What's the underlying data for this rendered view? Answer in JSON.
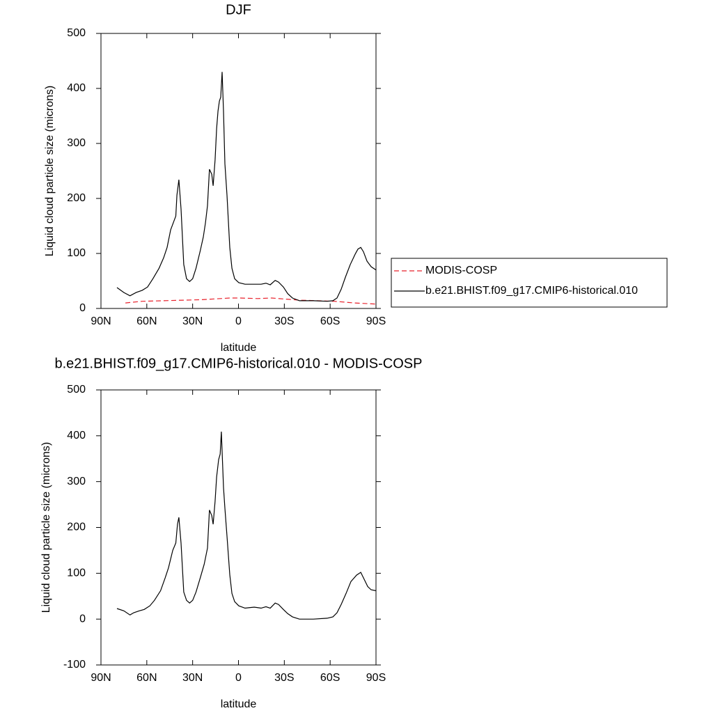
{
  "chart_data": [
    {
      "type": "line",
      "title": "DJF",
      "y_label": "Liquid cloud particle size (microns)",
      "x_label": "latitude",
      "xlim": [
        90,
        -90
      ],
      "xticks": [
        {
          "value": 90,
          "label": "90N"
        },
        {
          "value": 60,
          "label": "60N"
        },
        {
          "value": 30,
          "label": "30N"
        },
        0,
        {
          "value": -30,
          "label": "30S"
        },
        {
          "value": -60,
          "label": "60S"
        },
        {
          "value": -90,
          "label": "90S"
        }
      ],
      "ylim": [
        0,
        500
      ],
      "yticks": [
        0,
        100,
        200,
        300,
        400,
        500
      ],
      "legend": "right",
      "series": [
        {
          "name": "MODIS-COSP",
          "color": "#e8202a",
          "dash": true,
          "x": [
            74,
            63,
            24,
            5.7,
            -1,
            -12.6,
            -21.7,
            -40,
            -62.7,
            -76,
            -90
          ],
          "values": [
            10,
            13,
            16,
            19,
            19,
            18,
            19,
            15,
            13,
            10,
            8
          ]
        },
        {
          "name": "b.e21.BHIST.f09_g17.CMIP6-historical.010",
          "color": "#000000",
          "dash": false,
          "x": [
            79.5,
            75,
            71,
            67,
            63,
            59.5,
            56,
            52,
            49,
            46.7,
            44.4,
            41,
            40.3,
            39,
            37.6,
            35.8,
            34,
            32,
            30,
            27.8,
            25,
            23,
            21.6,
            20.3,
            19,
            17.5,
            16.6,
            15.3,
            14.3,
            13.4,
            12.5,
            11.6,
            10.7,
            9.8,
            8.9,
            7.5,
            5.7,
            4.3,
            2.5,
            -0.2,
            -4.3,
            -10.3,
            -14.8,
            -18,
            -20.8,
            -24,
            -26.2,
            -29.4,
            -32.2,
            -35.3,
            -39.9,
            -49,
            -58,
            -61.8,
            -64.5,
            -67.2,
            -70,
            -73.2,
            -76.4,
            -78.2,
            -80,
            -81.8,
            -84.1,
            -86.8,
            -90
          ],
          "values": [
            38,
            29,
            23,
            29,
            33,
            39,
            54,
            73,
            92,
            111,
            143,
            168,
            206,
            234,
            181,
            80,
            54,
            49,
            54,
            73,
            105,
            130,
            156,
            187,
            253,
            244,
            223,
            270,
            327,
            359,
            377,
            384,
            430,
            358,
            263,
            206,
            111,
            73,
            54,
            47,
            44,
            44,
            44,
            46,
            43,
            51,
            48,
            39,
            27,
            19,
            14,
            14,
            13,
            14,
            19,
            35,
            57,
            80,
            99,
            108,
            111,
            103,
            86,
            76,
            70
          ]
        }
      ]
    },
    {
      "type": "line",
      "title": "b.e21.BHIST.f09_g17.CMIP6-historical.010 - MODIS-COSP",
      "y_label": "Liquid cloud particle size (microns)",
      "x_label": "latitude",
      "xlim": [
        90,
        -90
      ],
      "xticks": [
        {
          "value": 90,
          "label": "90N"
        },
        {
          "value": 60,
          "label": "60N"
        },
        {
          "value": 30,
          "label": "30N"
        },
        0,
        {
          "value": -30,
          "label": "30S"
        },
        {
          "value": -60,
          "label": "60S"
        },
        {
          "value": -90,
          "label": "90S"
        }
      ],
      "ylim": [
        -100,
        500
      ],
      "yticks": [
        -100,
        0,
        100,
        200,
        300,
        400,
        500
      ],
      "legend": false,
      "series": [
        {
          "color": "#000000",
          "dash": false,
          "x": [
            79.5,
            75,
            71,
            68.6,
            65,
            61.7,
            58,
            55,
            51,
            48,
            45.8,
            43,
            41,
            39.9,
            39,
            37.6,
            35.8,
            34,
            32,
            30,
            27.8,
            25,
            22.4,
            20.3,
            19,
            17.5,
            16.6,
            15.3,
            14.3,
            13,
            12,
            11.2,
            9.8,
            8.9,
            7.5,
            5.7,
            4.3,
            2.5,
            -0.2,
            -4.3,
            -10.3,
            -14.8,
            -18,
            -20.8,
            -24,
            -26.2,
            -29.4,
            -32.2,
            -35.3,
            -39.9,
            -49,
            -58,
            -61.8,
            -64.5,
            -67.2,
            -70.4,
            -73.6,
            -77.3,
            -80,
            -81.8,
            -84.6,
            -86.8,
            -90
          ],
          "values": [
            23,
            18,
            9,
            14,
            18,
            21,
            29,
            41,
            62,
            90,
            112,
            150,
            166,
            207,
            222,
            166,
            59,
            41,
            35,
            41,
            59,
            90,
            120,
            155,
            238,
            226,
            207,
            257,
            310,
            348,
            360,
            409,
            287,
            242,
            181,
            97,
            56,
            38,
            29,
            24,
            26,
            24,
            27,
            24,
            35,
            32,
            21,
            12,
            5,
            0,
            0,
            2,
            5,
            14,
            32,
            56,
            82,
            96,
            102,
            90,
            71,
            64,
            62
          ]
        }
      ]
    }
  ]
}
